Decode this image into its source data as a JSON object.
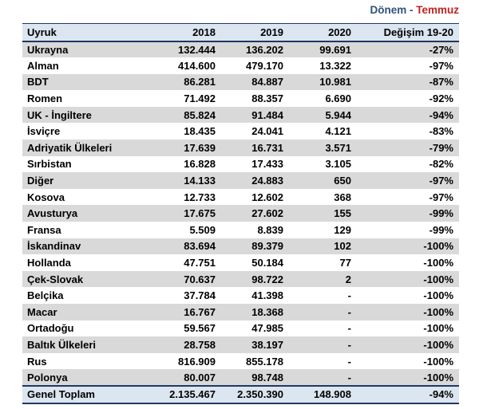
{
  "page_header": {
    "period_label": "Dönem -",
    "period_value": "Temmuz"
  },
  "colors": {
    "header_bg": "#dce6f1",
    "stripe_gray": "#d9d9d9",
    "border_navy": "#1f3864",
    "period_label_color": "#31517b",
    "period_value_color": "#c42222",
    "text": "#000000"
  },
  "table": {
    "columns": [
      "Uyruk",
      "2018",
      "2019",
      "2020",
      "Değişim 19-20"
    ],
    "rows": [
      [
        "Ukrayna",
        "132.444",
        "136.202",
        "99.691",
        "-27%"
      ],
      [
        "Alman",
        "414.600",
        "479.170",
        "13.322",
        "-97%"
      ],
      [
        "BDT",
        "86.281",
        "84.887",
        "10.981",
        "-87%"
      ],
      [
        "Romen",
        "71.492",
        "88.357",
        "6.690",
        "-92%"
      ],
      [
        "UK - İngiltere",
        "85.824",
        "91.484",
        "5.944",
        "-94%"
      ],
      [
        "İsviçre",
        "18.435",
        "24.041",
        "4.121",
        "-83%"
      ],
      [
        "Adriyatik Ülkeleri",
        "17.639",
        "16.731",
        "3.571",
        "-79%"
      ],
      [
        "Sırbistan",
        "16.828",
        "17.433",
        "3.105",
        "-82%"
      ],
      [
        "Diğer",
        "14.133",
        "24.883",
        "650",
        "-97%"
      ],
      [
        "Kosova",
        "12.733",
        "12.602",
        "368",
        "-97%"
      ],
      [
        "Avusturya",
        "17.675",
        "27.602",
        "155",
        "-99%"
      ],
      [
        "Fransa",
        "5.509",
        "8.839",
        "129",
        "-99%"
      ],
      [
        "İskandinav",
        "83.694",
        "89.379",
        "102",
        "-100%"
      ],
      [
        "Hollanda",
        "47.751",
        "50.184",
        "77",
        "-100%"
      ],
      [
        "Çek-Slovak",
        "70.637",
        "98.722",
        "2",
        "-100%"
      ],
      [
        "Belçika",
        "37.784",
        "41.398",
        "-",
        "-100%"
      ],
      [
        "Macar",
        "16.767",
        "18.368",
        "-",
        "-100%"
      ],
      [
        "Ortadoğu",
        "59.567",
        "47.985",
        "-",
        "-100%"
      ],
      [
        "Baltık Ülkeleri",
        "28.758",
        "38.197",
        "-",
        "-100%"
      ],
      [
        "Rus",
        "816.909",
        "855.178",
        "-",
        "-100%"
      ],
      [
        "Polonya",
        "80.007",
        "98.748",
        "-",
        "-100%"
      ]
    ],
    "total": [
      "Genel Toplam",
      "2.135.467",
      "2.350.390",
      "148.908",
      "-94%"
    ]
  },
  "chart_data": {
    "type": "table",
    "title": "Dönem - Temmuz",
    "categories": [
      "Ukrayna",
      "Alman",
      "BDT",
      "Romen",
      "UK - İngiltere",
      "İsviçre",
      "Adriyatik Ülkeleri",
      "Sırbistan",
      "Diğer",
      "Kosova",
      "Avusturya",
      "Fransa",
      "İskandinav",
      "Hollanda",
      "Çek-Slovak",
      "Belçika",
      "Macar",
      "Ortadoğu",
      "Baltık Ülkeleri",
      "Rus",
      "Polonya"
    ],
    "series": [
      {
        "name": "2018",
        "values": [
          132444,
          414600,
          86281,
          71492,
          85824,
          18435,
          17639,
          16828,
          14133,
          12733,
          17675,
          5509,
          83694,
          47751,
          70637,
          37784,
          16767,
          59567,
          28758,
          816909,
          80007
        ]
      },
      {
        "name": "2019",
        "values": [
          136202,
          479170,
          84887,
          88357,
          91484,
          24041,
          16731,
          17433,
          24883,
          12602,
          27602,
          8839,
          89379,
          50184,
          98722,
          41398,
          18368,
          47985,
          38197,
          855178,
          98748
        ]
      },
      {
        "name": "2020",
        "values": [
          99691,
          13322,
          10981,
          6690,
          5944,
          4121,
          3571,
          3105,
          650,
          368,
          155,
          129,
          102,
          77,
          2,
          null,
          null,
          null,
          null,
          null,
          null
        ]
      },
      {
        "name": "Değişim 19-20",
        "values": [
          "-27%",
          "-97%",
          "-87%",
          "-92%",
          "-94%",
          "-83%",
          "-79%",
          "-82%",
          "-97%",
          "-97%",
          "-99%",
          "-99%",
          "-100%",
          "-100%",
          "-100%",
          "-100%",
          "-100%",
          "-100%",
          "-100%",
          "-100%",
          "-100%"
        ]
      }
    ],
    "totals": {
      "name": "Genel Toplam",
      "2018": 2135467,
      "2019": 2350390,
      "2020": 148908,
      "change_19_20": "-94%"
    }
  }
}
